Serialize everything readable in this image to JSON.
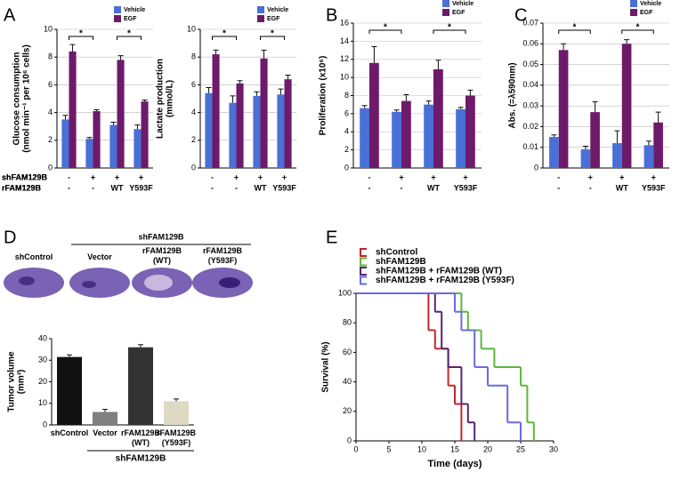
{
  "chart_data": [
    {
      "type": "bar",
      "panel": "A",
      "ylabel": [
        "Glucose consumption",
        "(nmol min⁻¹ per 10⁶ cells)"
      ],
      "series": [
        {
          "name": "Vehicle",
          "color": "#4a6fd6",
          "values": [
            3.5,
            2.1,
            3.1,
            2.8
          ],
          "errors": [
            0.3,
            0.1,
            0.2,
            0.3
          ]
        },
        {
          "name": "EGF",
          "color": "#6e1a6a",
          "values": [
            8.4,
            4.1,
            7.8,
            4.8
          ],
          "errors": [
            0.5,
            0.1,
            0.3,
            0.1
          ]
        }
      ],
      "conditions": [
        {
          "name": "shFAM129B",
          "values": [
            "-",
            "+",
            "+",
            "+"
          ]
        },
        {
          "name": "rFAM129B",
          "values": [
            "-",
            "-",
            "WT",
            "Y593F"
          ]
        }
      ],
      "annotations": [
        "*",
        "*"
      ],
      "ylim": [
        0,
        10
      ],
      "yticks": [
        0,
        2,
        4,
        6,
        8,
        10
      ],
      "grid": true
    },
    {
      "type": "bar",
      "ylabel": [
        "Lactate production",
        "(mmol/L)"
      ],
      "series": [
        {
          "name": "Vehicle",
          "color": "#4a6fd6",
          "values": [
            5.4,
            4.7,
            5.2,
            5.3
          ],
          "errors": [
            0.4,
            0.5,
            0.3,
            0.4
          ]
        },
        {
          "name": "EGF",
          "color": "#6e1a6a",
          "values": [
            8.2,
            6.1,
            7.9,
            6.4
          ],
          "errors": [
            0.3,
            0.2,
            0.6,
            0.3
          ]
        }
      ],
      "conditions": [
        {
          "values": [
            "-",
            "+",
            "+",
            "+"
          ]
        },
        {
          "values": [
            "-",
            "-",
            "WT",
            "Y593F"
          ]
        }
      ],
      "annotations": [
        "*",
        "*"
      ],
      "ylim": [
        0,
        10
      ],
      "yticks": [
        0,
        2,
        4,
        6,
        8,
        10
      ],
      "grid": true
    },
    {
      "type": "bar",
      "panel": "B",
      "ylabel": [
        "Proliferation (x10⁶)"
      ],
      "series": [
        {
          "name": "Vehicle",
          "color": "#4a6fd6",
          "values": [
            6.6,
            6.2,
            7.0,
            6.5
          ],
          "errors": [
            0.3,
            0.2,
            0.4,
            0.2
          ]
        },
        {
          "name": "EGF",
          "color": "#6e1a6a",
          "values": [
            11.6,
            7.4,
            10.9,
            8.0
          ],
          "errors": [
            1.8,
            0.7,
            1.0,
            0.6
          ]
        }
      ],
      "conditions": [
        {
          "name": "shFAM129B",
          "values": [
            "-",
            "+",
            "+",
            "+"
          ]
        },
        {
          "name": "rFAM129B",
          "values": [
            "-",
            "-",
            "WT",
            "Y593F"
          ]
        }
      ],
      "annotations": [
        "*",
        "*"
      ],
      "ylim": [
        0,
        16
      ],
      "yticks": [
        0,
        2,
        4,
        6,
        8,
        10,
        12,
        14,
        16
      ],
      "grid": true
    },
    {
      "type": "bar",
      "panel": "C",
      "ylabel": [
        "Abs. (=λ590nm)"
      ],
      "series": [
        {
          "name": "Vehicle",
          "color": "#4a6fd6",
          "values": [
            0.015,
            0.009,
            0.012,
            0.011
          ],
          "errors": [
            0.001,
            0.0015,
            0.006,
            0.002
          ]
        },
        {
          "name": "EGF",
          "color": "#6e1a6a",
          "values": [
            0.057,
            0.027,
            0.06,
            0.022
          ],
          "errors": [
            0.003,
            0.005,
            0.002,
            0.005
          ]
        }
      ],
      "conditions": [
        {
          "name": "shFAM129B",
          "values": [
            "-",
            "+",
            "+",
            "+"
          ]
        },
        {
          "name": "rFAM129B",
          "values": [
            "-",
            "-",
            "WT",
            "Y593F"
          ]
        }
      ],
      "annotations": [
        "*",
        "*"
      ],
      "ylim": [
        0,
        0.07
      ],
      "yticks": [
        0,
        0.01,
        0.02,
        0.03,
        0.04,
        0.05,
        0.06,
        0.07
      ],
      "grid": true
    },
    {
      "type": "column",
      "panel": "D",
      "ylabel": [
        "Tumor volume",
        "(mm³)"
      ],
      "categories": [
        "shControl",
        "Vector",
        "rFAM129B (WT)",
        "rFAM129B (Y593F)"
      ],
      "values": [
        31.5,
        6,
        36,
        11
      ],
      "errors": [
        1,
        1.2,
        1.2,
        1
      ],
      "colors": [
        "#111111",
        "#808080",
        "#333333",
        "#ddd9c3"
      ],
      "group_label": "shFAM129B",
      "image_labels": [
        "shControl",
        "Vector",
        "rFAM129B (WT)",
        "rFAM129B (Y593F)"
      ],
      "image_group_label": "shFAM129B",
      "ylim": [
        0,
        40
      ],
      "yticks": [
        0,
        10,
        20,
        30,
        40
      ],
      "grid": false
    },
    {
      "type": "line",
      "panel": "E",
      "xlabel": "Time (days)",
      "ylabel": [
        "Survival (%)"
      ],
      "series": [
        {
          "name": "shControl",
          "color": "#c0282a",
          "x": [
            0,
            11,
            12,
            14,
            15,
            16
          ],
          "values": [
            100,
            75,
            62.5,
            37.5,
            25,
            0
          ]
        },
        {
          "name": "shFAM129B",
          "color": "#5cb83c",
          "x": [
            0,
            16,
            17,
            19,
            21,
            25,
            26,
            27
          ],
          "values": [
            100,
            87.5,
            75,
            62.5,
            50,
            37.5,
            12.5,
            0
          ]
        },
        {
          "name": "shFAM129B + rFAM129B (WT)",
          "color": "#5a2470",
          "x": [
            0,
            12,
            13,
            14,
            16,
            17,
            18
          ],
          "values": [
            100,
            87.5,
            62.5,
            50,
            25,
            12.5,
            0
          ]
        },
        {
          "name": "shFAM129B + rFAM129B (Y593F)",
          "color": "#6a6ae0",
          "x": [
            0,
            15,
            16,
            18,
            20,
            23,
            25
          ],
          "values": [
            100,
            87.5,
            75,
            50,
            37.5,
            12.5,
            0
          ]
        }
      ],
      "xlim": [
        0,
        30
      ],
      "xticks": [
        0,
        5,
        10,
        15,
        20,
        25,
        30
      ],
      "ylim": [
        0,
        100
      ],
      "yticks": [
        0,
        20,
        40,
        60,
        80,
        100
      ],
      "grid": false
    }
  ]
}
